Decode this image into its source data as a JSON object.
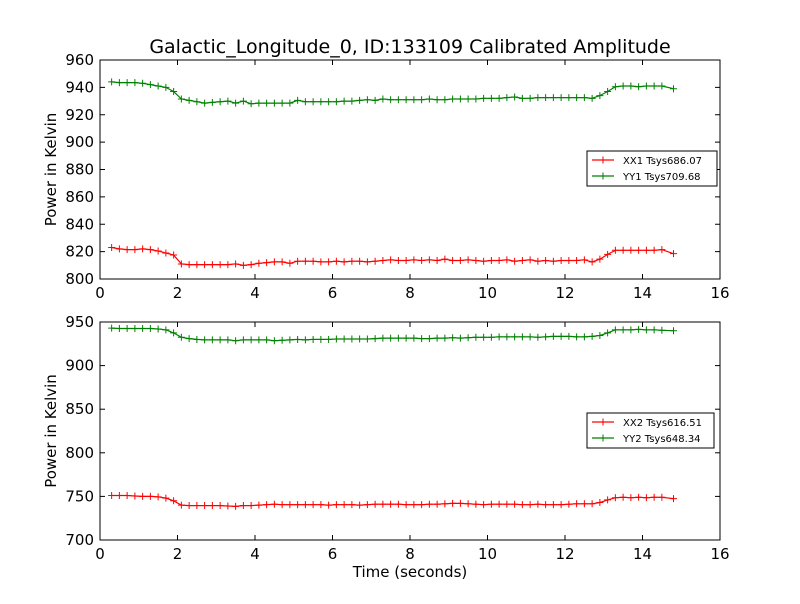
{
  "chart_data": [
    {
      "type": "line",
      "title": "Galactic_Longitude_0, ID:133109 Calibrated Amplitude",
      "xlabel": "",
      "ylabel": "Power in Kelvin",
      "xlim": [
        0,
        16
      ],
      "ylim": [
        800,
        960
      ],
      "xticks": [
        0,
        2,
        4,
        6,
        8,
        10,
        12,
        14,
        16
      ],
      "yticks": [
        800,
        820,
        840,
        860,
        880,
        900,
        920,
        940,
        960
      ],
      "legend_position": "center-right",
      "x": [
        0.3,
        0.5,
        0.7,
        0.9,
        1.1,
        1.3,
        1.5,
        1.7,
        1.9,
        2.1,
        2.3,
        2.5,
        2.7,
        2.9,
        3.1,
        3.3,
        3.5,
        3.7,
        3.9,
        4.1,
        4.3,
        4.5,
        4.7,
        4.9,
        5.1,
        5.3,
        5.5,
        5.7,
        5.9,
        6.1,
        6.3,
        6.5,
        6.7,
        6.9,
        7.1,
        7.3,
        7.5,
        7.7,
        7.9,
        8.1,
        8.3,
        8.5,
        8.7,
        8.9,
        9.1,
        9.3,
        9.5,
        9.7,
        9.9,
        10.1,
        10.3,
        10.5,
        10.7,
        10.9,
        11.1,
        11.3,
        11.5,
        11.7,
        11.9,
        12.1,
        12.3,
        12.5,
        12.7,
        12.9,
        13.1,
        13.3,
        13.5,
        13.7,
        13.9,
        14.1,
        14.3,
        14.5,
        14.8
      ],
      "series": [
        {
          "name": "XX1 Tsys686.07",
          "color": "#ff0000",
          "values": [
            823,
            822,
            821.5,
            821.5,
            822,
            821.5,
            820.5,
            819,
            817.5,
            811,
            810.5,
            810.5,
            810.5,
            810.5,
            810.5,
            810.5,
            811,
            810,
            810.5,
            811.5,
            812,
            812.5,
            812.5,
            811.5,
            813,
            813,
            813,
            812.5,
            812.5,
            813,
            812.5,
            813,
            813,
            812.5,
            813,
            813.5,
            814,
            813.5,
            813.5,
            814,
            813.5,
            814,
            813.5,
            814.5,
            813.5,
            813.5,
            814,
            813.5,
            813,
            813.5,
            813.5,
            814,
            813,
            813.5,
            814,
            813,
            813.5,
            813,
            813.5,
            813.5,
            813.5,
            814,
            812.5,
            814.5,
            818,
            821,
            821,
            821,
            821,
            821,
            821,
            821.5,
            818.5
          ]
        },
        {
          "name": "YY1 Tsys709.68",
          "color": "#008000",
          "values": [
            944,
            943.5,
            943.5,
            943.5,
            943,
            942,
            941,
            940,
            937,
            931.5,
            930.5,
            929.5,
            928.5,
            929,
            929.5,
            930,
            928.5,
            930,
            928,
            928.5,
            928.5,
            928.5,
            928.5,
            928.5,
            930.5,
            929.5,
            929.5,
            929.5,
            929.5,
            929.5,
            930,
            930,
            930.5,
            931,
            930.5,
            931.5,
            931,
            931,
            931,
            931,
            931,
            931.5,
            931,
            931,
            931.5,
            931.5,
            931.5,
            931.5,
            932,
            932,
            932,
            932.5,
            933,
            932,
            932,
            932.5,
            932.5,
            932.5,
            932.5,
            932.5,
            932.5,
            932.5,
            932,
            934,
            937,
            940.5,
            941,
            941,
            940.5,
            941,
            941,
            941,
            939
          ]
        }
      ]
    },
    {
      "type": "line",
      "title": "",
      "xlabel": "Time (seconds)",
      "ylabel": "Power in Kelvin",
      "xlim": [
        0,
        16
      ],
      "ylim": [
        700,
        950
      ],
      "xticks": [
        0,
        2,
        4,
        6,
        8,
        10,
        12,
        14,
        16
      ],
      "yticks": [
        700,
        750,
        800,
        850,
        900,
        950
      ],
      "legend_position": "center-right",
      "x": [
        0.3,
        0.5,
        0.7,
        0.9,
        1.1,
        1.3,
        1.5,
        1.7,
        1.9,
        2.1,
        2.3,
        2.5,
        2.7,
        2.9,
        3.1,
        3.3,
        3.5,
        3.7,
        3.9,
        4.1,
        4.3,
        4.5,
        4.7,
        4.9,
        5.1,
        5.3,
        5.5,
        5.7,
        5.9,
        6.1,
        6.3,
        6.5,
        6.7,
        6.9,
        7.1,
        7.3,
        7.5,
        7.7,
        7.9,
        8.1,
        8.3,
        8.5,
        8.7,
        8.9,
        9.1,
        9.3,
        9.5,
        9.7,
        9.9,
        10.1,
        10.3,
        10.5,
        10.7,
        10.9,
        11.1,
        11.3,
        11.5,
        11.7,
        11.9,
        12.1,
        12.3,
        12.5,
        12.7,
        12.9,
        13.1,
        13.3,
        13.5,
        13.7,
        13.9,
        14.1,
        14.3,
        14.5,
        14.8
      ],
      "series": [
        {
          "name": "XX2 Tsys616.51",
          "color": "#ff0000",
          "values": [
            751,
            751,
            751,
            750.5,
            750,
            750,
            749.5,
            748,
            745,
            740,
            739.5,
            739.5,
            739.5,
            739.5,
            739.5,
            739,
            738.5,
            739.5,
            739.5,
            740,
            740.5,
            741,
            740.5,
            740.5,
            740.5,
            740.5,
            740.5,
            740.5,
            740,
            740.5,
            740.5,
            740.5,
            740,
            740.5,
            741,
            741,
            741,
            741,
            740.5,
            740.5,
            740.5,
            741,
            741,
            741.5,
            742,
            742,
            741.5,
            741,
            740.5,
            741,
            741,
            741,
            741,
            740.5,
            740.5,
            741,
            740.5,
            740.5,
            740.5,
            741,
            741.5,
            741.5,
            741.5,
            743,
            746,
            748.5,
            749,
            748.5,
            749,
            748.5,
            749,
            749,
            747.5
          ]
        },
        {
          "name": "YY2 Tsys648.34",
          "color": "#008000",
          "values": [
            943,
            942.5,
            942.5,
            942.5,
            942.5,
            942.5,
            942,
            941,
            937.5,
            932.5,
            931,
            930,
            929.5,
            929.5,
            929.5,
            929.5,
            928.5,
            929.5,
            929.5,
            929.5,
            929.5,
            928.5,
            929,
            929.5,
            930,
            929.5,
            930,
            930,
            930,
            930.5,
            930.5,
            930.5,
            930.5,
            930.5,
            931,
            931.5,
            931.5,
            931.5,
            931.5,
            931.5,
            931,
            931,
            931.5,
            931.5,
            932,
            931.5,
            932,
            932.5,
            932.5,
            932.5,
            933,
            933,
            933,
            933,
            933,
            932.5,
            933,
            933.5,
            933.5,
            933.5,
            933,
            933,
            933.5,
            934.5,
            937.5,
            941,
            941,
            941,
            941.5,
            941,
            941,
            940.5,
            940
          ]
        }
      ]
    }
  ]
}
